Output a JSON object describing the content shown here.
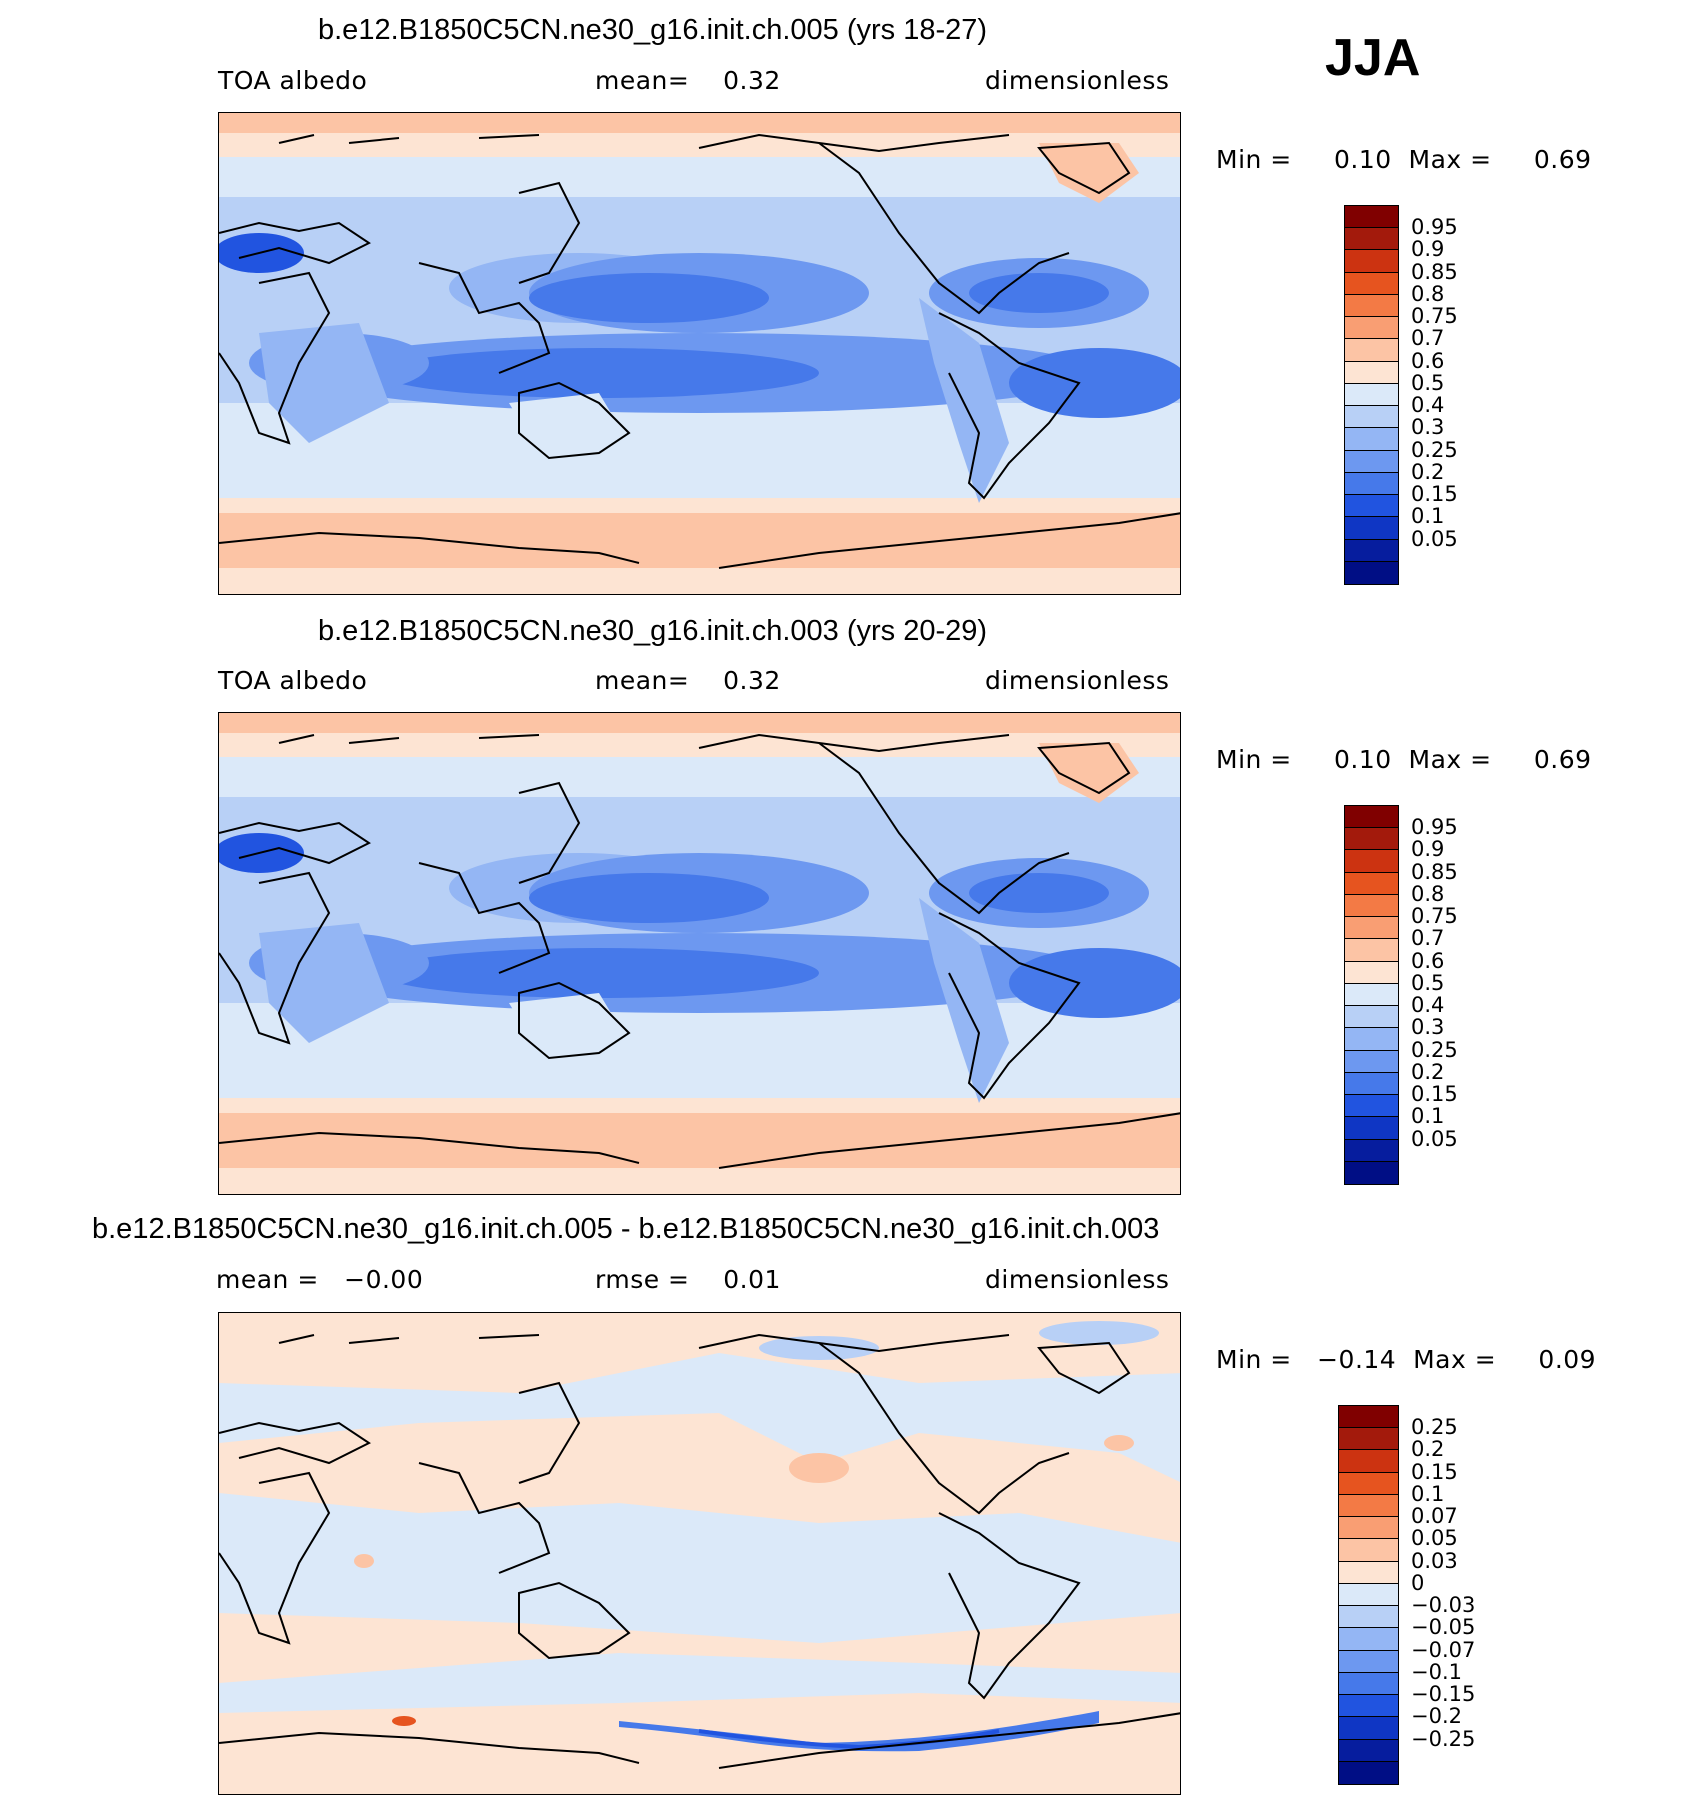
{
  "season": "JJA",
  "panels": [
    {
      "title": "b.e12.B1850C5CN.ne30_g16.init.ch.005 (yrs 18-27)",
      "left_label": "TOA albedo",
      "center_label": "mean=    0.32",
      "right_label": "dimensionless",
      "minmax": "Min =     0.10  Max =     0.69",
      "colorbar": {
        "ticks": [
          "0.95",
          "0.9",
          "0.85",
          "0.8",
          "0.75",
          "0.7",
          "0.6",
          "0.5",
          "0.4",
          "0.3",
          "0.25",
          "0.2",
          "0.15",
          "0.1",
          "0.05"
        ],
        "colors": [
          "#800000",
          "#a31a0c",
          "#cc3311",
          "#e6541f",
          "#f37a45",
          "#f99e73",
          "#fcc4a5",
          "#fde4d3",
          "#dbe9f9",
          "#b8d0f6",
          "#94b6f4",
          "#6d98f0",
          "#4679ea",
          "#2154e0",
          "#0f36c4",
          "#061d9e",
          "#000e85"
        ]
      }
    },
    {
      "title": "b.e12.B1850C5CN.ne30_g16.init.ch.003 (yrs 20-29)",
      "left_label": "TOA albedo",
      "center_label": "mean=    0.32",
      "right_label": "dimensionless",
      "minmax": "Min =     0.10  Max =     0.69",
      "colorbar": {
        "ticks": [
          "0.95",
          "0.9",
          "0.85",
          "0.8",
          "0.75",
          "0.7",
          "0.6",
          "0.5",
          "0.4",
          "0.3",
          "0.25",
          "0.2",
          "0.15",
          "0.1",
          "0.05"
        ],
        "colors": [
          "#800000",
          "#a31a0c",
          "#cc3311",
          "#e6541f",
          "#f37a45",
          "#f99e73",
          "#fcc4a5",
          "#fde4d3",
          "#dbe9f9",
          "#b8d0f6",
          "#94b6f4",
          "#6d98f0",
          "#4679ea",
          "#2154e0",
          "#0f36c4",
          "#061d9e",
          "#000e85"
        ]
      }
    },
    {
      "title": "b.e12.B1850C5CN.ne30_g16.init.ch.005 - b.e12.B1850C5CN.ne30_g16.init.ch.003",
      "left_label": "mean =   −0.00",
      "center_label": "rmse =    0.01",
      "right_label": "dimensionless",
      "minmax": "Min =   −0.14  Max =     0.09",
      "colorbar": {
        "ticks": [
          "0.25",
          "0.2",
          "0.15",
          "0.1",
          "0.07",
          "0.05",
          "0.03",
          "0",
          "−0.03",
          "−0.05",
          "−0.07",
          "−0.1",
          "−0.15",
          "−0.2",
          "−0.25"
        ],
        "colors": [
          "#800000",
          "#a31a0c",
          "#cc3311",
          "#e6541f",
          "#f37a45",
          "#f99e73",
          "#fcc4a5",
          "#fde4d3",
          "#dbe9f9",
          "#b8d0f6",
          "#94b6f4",
          "#6d98f0",
          "#4679ea",
          "#2154e0",
          "#0f36c4",
          "#061d9e",
          "#000e85"
        ]
      }
    }
  ],
  "map_colors": {
    "ocean_light": "#dbe9f9",
    "mid_blue": "#b8d0f6",
    "blue": "#94b6f4",
    "deep_blue": "#6d98f0",
    "deeper_blue": "#4679ea",
    "darkest": "#2154e0",
    "polar_pink": "#fcc4a5",
    "polar_light": "#fde4d3",
    "land_line": "#000000"
  }
}
